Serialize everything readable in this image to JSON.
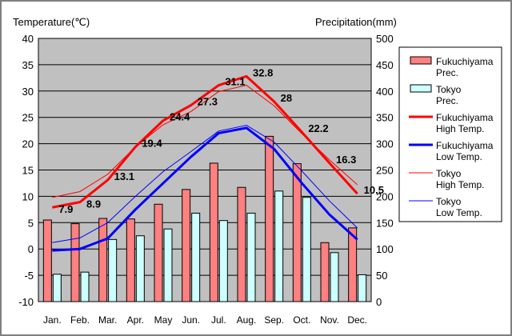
{
  "chart_data": {
    "type": "bar",
    "y_left_label": "Temperature(℃)",
    "y_right_label": "Precipitation(mm)",
    "y_left_range": [
      -10,
      40
    ],
    "y_left_ticks": [
      "40",
      "35",
      "30",
      "25",
      "20",
      "15",
      "10",
      "5",
      "0",
      "-5",
      "-10"
    ],
    "y_right_range": [
      0,
      500
    ],
    "y_right_ticks": [
      "500",
      "450",
      "400",
      "350",
      "300",
      "250",
      "200",
      "150",
      "100",
      "50",
      "0"
    ],
    "categories": [
      "Jan.",
      "Feb.",
      "Mar.",
      "Apr.",
      "May",
      "Jun.",
      "Jul.",
      "Aug.",
      "Sep.",
      "Oct.",
      "Nov.",
      "Dec."
    ],
    "grid": true,
    "legend_position": "right",
    "series": [
      {
        "name": "Fukuchiyama Prec.",
        "kind": "bar",
        "axis": "right",
        "color": "#ff8080",
        "values": [
          155,
          148,
          158,
          157,
          185,
          213,
          263,
          217,
          314,
          262,
          112,
          140
        ]
      },
      {
        "name": "Tokyo Prec.",
        "kind": "bar",
        "axis": "right",
        "color": "#ccffff",
        "values": [
          52,
          56,
          118,
          125,
          138,
          168,
          154,
          168,
          210,
          198,
          93,
          51
        ]
      },
      {
        "name": "Fukuchiyama High Temp.",
        "kind": "line",
        "axis": "left",
        "color": "#ff0000",
        "width": 3,
        "values": [
          7.9,
          8.9,
          13.1,
          19.4,
          24.4,
          27.3,
          31.1,
          32.8,
          28,
          22.2,
          16.3,
          10.5
        ],
        "labels": [
          "7.9",
          "8.9",
          "13.1",
          "19.4",
          "24.4",
          "27.3",
          "31.1",
          "32.8",
          "28",
          "22.2",
          "16.3",
          "10.5"
        ]
      },
      {
        "name": "Fukuchiyama Low Temp.",
        "kind": "line",
        "axis": "left",
        "color": "#0000ff",
        "width": 3,
        "values": [
          -0.3,
          0,
          2,
          7.5,
          12.5,
          17.5,
          22,
          23,
          19,
          12.5,
          6.5,
          1.8
        ]
      },
      {
        "name": "Tokyo High Temp.",
        "kind": "line",
        "axis": "left",
        "color": "#ff0000",
        "width": 1,
        "values": [
          9.8,
          10.9,
          14.2,
          19.4,
          23.6,
          26.1,
          29.9,
          31.1,
          27.2,
          21.9,
          16.9,
          12.2
        ]
      },
      {
        "name": "Tokyo Low Temp.",
        "kind": "line",
        "axis": "left",
        "color": "#0000ff",
        "width": 1,
        "values": [
          1.2,
          2.1,
          5,
          10,
          14.7,
          18.5,
          22.4,
          23.5,
          20.3,
          14.8,
          9.1,
          4
        ]
      }
    ],
    "legend": [
      {
        "kind": "bar",
        "color": "#ff8080",
        "line1": "Fukuchiyama",
        "line2": "Prec."
      },
      {
        "kind": "bar",
        "color": "#ccffff",
        "line1": "Tokyo",
        "line2": "Prec."
      },
      {
        "kind": "line",
        "color": "#ff0000",
        "width": 3,
        "line1": "Fukuchiyama",
        "line2": "High Temp."
      },
      {
        "kind": "line",
        "color": "#0000ff",
        "width": 3,
        "line1": "Fukuchiyama",
        "line2": "Low Temp."
      },
      {
        "kind": "line",
        "color": "#ff0000",
        "width": 1,
        "line1": "Tokyo",
        "line2": "High Temp."
      },
      {
        "kind": "line",
        "color": "#0000ff",
        "width": 1,
        "line1": "Tokyo",
        "line2": "Low Temp."
      }
    ],
    "plot_background": "#c0c0c0"
  }
}
